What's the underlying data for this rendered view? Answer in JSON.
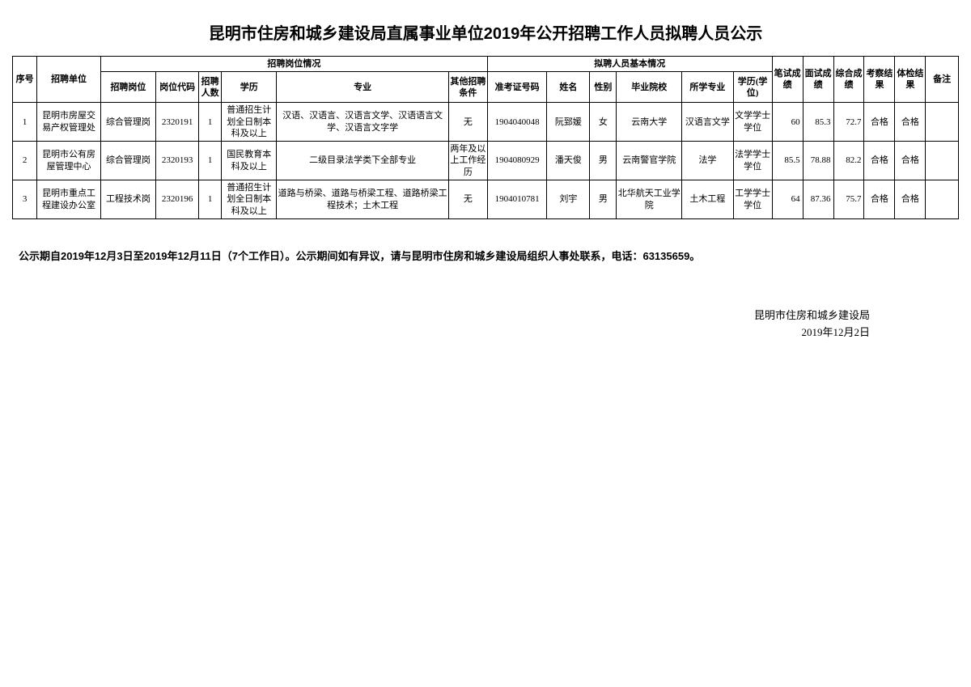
{
  "title": "昆明市住房和城乡建设局直属事业单位2019年公开招聘工作人员拟聘人员公示",
  "header_groups": {
    "recruit": "招聘岗位情况",
    "candidate": "拟聘人员基本情况"
  },
  "columns": {
    "seq": "序号",
    "unit": "招聘单位",
    "post": "招聘岗位",
    "code": "岗位代码",
    "count": "招聘人数",
    "edu": "学历",
    "major": "专业",
    "other": "其他招聘条件",
    "exam_no": "准考证号码",
    "name": "姓名",
    "sex": "性别",
    "school": "毕业院校",
    "study_major": "所学专业",
    "degree": "学历(学位)",
    "written": "笔试成绩",
    "interview": "面试成绩",
    "total": "综合成绩",
    "inspect": "考察结果",
    "physical": "体检结果",
    "remark": "备注"
  },
  "rows": [
    {
      "seq": "1",
      "unit": "昆明市房屋交易产权管理处",
      "post": "综合管理岗",
      "code": "2320191",
      "count": "1",
      "edu": "普通招生计划全日制本科及以上",
      "major": "汉语、汉语言、汉语言文学、汉语语言文学、汉语言文字学",
      "other": "无",
      "exam_no": "1904040048",
      "name": "阮郅媛",
      "sex": "女",
      "school": "云南大学",
      "study_major": "汉语言文学",
      "degree": "文学学士学位",
      "written": "60",
      "interview": "85.3",
      "total": "72.7",
      "inspect": "合格",
      "physical": "合格",
      "remark": ""
    },
    {
      "seq": "2",
      "unit": "昆明市公有房屋管理中心",
      "post": "综合管理岗",
      "code": "2320193",
      "count": "1",
      "edu": "国民教育本科及以上",
      "major": "二级目录法学类下全部专业",
      "other": "两年及以上工作经历",
      "exam_no": "1904080929",
      "name": "潘天俊",
      "sex": "男",
      "school": "云南警官学院",
      "study_major": "法学",
      "degree": "法学学士学位",
      "written": "85.5",
      "interview": "78.88",
      "total": "82.2",
      "inspect": "合格",
      "physical": "合格",
      "remark": ""
    },
    {
      "seq": "3",
      "unit": "昆明市重点工程建设办公室",
      "post": "工程技术岗",
      "code": "2320196",
      "count": "1",
      "edu": "普通招生计划全日制本科及以上",
      "major": "道路与桥梁、道路与桥梁工程、道路桥梁工程技术；土木工程",
      "other": "无",
      "exam_no": "1904010781",
      "name": "刘宇",
      "sex": "男",
      "school": "北华航天工业学院",
      "study_major": "土木工程",
      "degree": "工学学士学位",
      "written": "64",
      "interview": "87.36",
      "total": "75.7",
      "inspect": "合格",
      "physical": "合格",
      "remark": ""
    }
  ],
  "notice": "公示期自2019年12月3日至2019年12月11日（7个工作日）。公示期间如有异议，请与昆明市住房和城乡建设局组织人事处联系，电话：63135659。",
  "signature_org": "昆明市住房和城乡建设局",
  "signature_date": "2019年12月2日"
}
